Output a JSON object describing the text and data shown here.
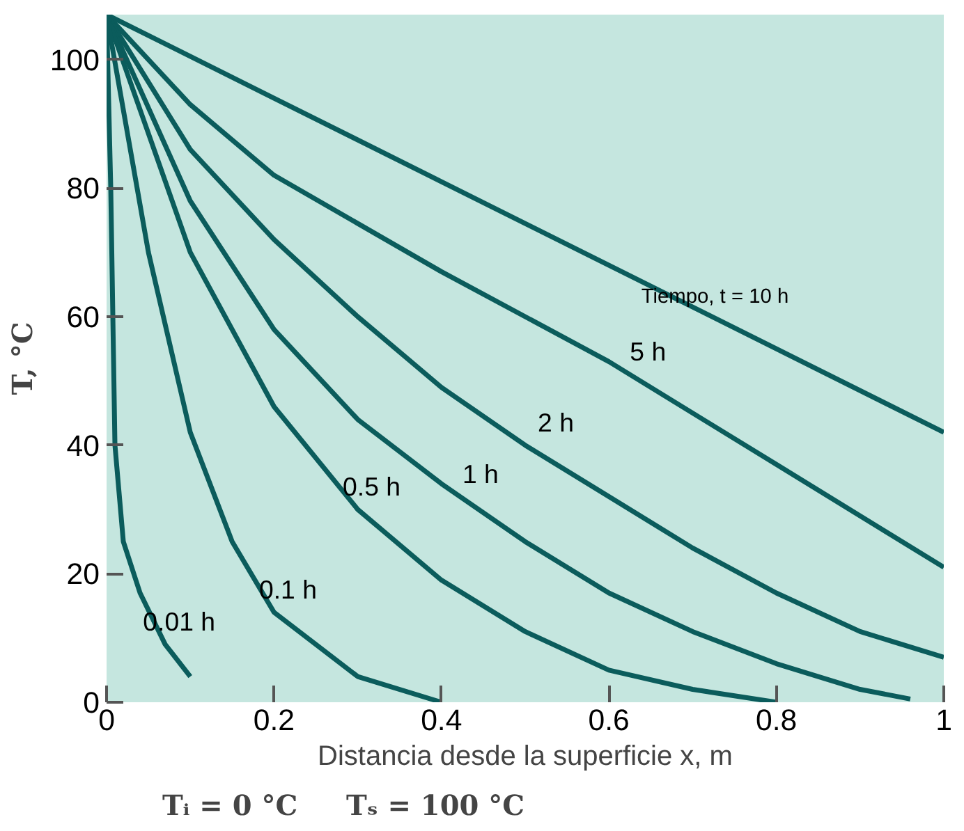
{
  "chart_data": {
    "type": "line",
    "xlabel": "Distancia desde la superficie x, m",
    "ylabel": "T, °C",
    "xlim": [
      0,
      1
    ],
    "ylim": [
      0,
      107
    ],
    "xticks": [
      0,
      0.2,
      0.4,
      0.6,
      0.8,
      1
    ],
    "yticks": [
      0,
      20,
      40,
      60,
      80,
      100
    ],
    "grid": false,
    "marker": "none",
    "line_style": "solid",
    "series": [
      {
        "color": "#0b5c5c",
        "x": [
          0,
          0.2,
          0.4,
          0.6,
          0.8,
          1
        ],
        "values": [
          107,
          94,
          81,
          68,
          55,
          42
        ]
      },
      {
        "color": "#0b5c5c",
        "x": [
          0,
          0.1,
          0.2,
          0.4,
          0.6,
          0.8,
          1
        ],
        "values": [
          107,
          93,
          82,
          67,
          53,
          37,
          21
        ]
      },
      {
        "color": "#0b5c5c",
        "x": [
          0,
          0.1,
          0.2,
          0.3,
          0.4,
          0.5,
          0.6,
          0.7,
          0.8,
          0.9,
          1
        ],
        "values": [
          107,
          86,
          72,
          60,
          49,
          40,
          32,
          24,
          17,
          11,
          7
        ]
      },
      {
        "color": "#0b5c5c",
        "x": [
          0,
          0.1,
          0.2,
          0.3,
          0.4,
          0.5,
          0.6,
          0.7,
          0.8,
          0.9,
          0.96
        ],
        "values": [
          107,
          78,
          58,
          44,
          34,
          25,
          17,
          11,
          6,
          2,
          0.5
        ]
      },
      {
        "color": "#0b5c5c",
        "x": [
          0,
          0.1,
          0.2,
          0.3,
          0.4,
          0.5,
          0.6,
          0.7,
          0.8
        ],
        "values": [
          107,
          70,
          46,
          30,
          19,
          11,
          5,
          2,
          0
        ]
      },
      {
        "color": "#0b5c5c",
        "x": [
          0,
          0.05,
          0.1,
          0.15,
          0.2,
          0.3,
          0.4
        ],
        "values": [
          107,
          70,
          42,
          25,
          14,
          4,
          0
        ]
      },
      {
        "color": "#0b5c5c",
        "x": [
          0,
          0.005,
          0.01,
          0.02,
          0.04,
          0.07,
          0.1
        ],
        "values": [
          107,
          80,
          40,
          25,
          17,
          9,
          4
        ]
      }
    ],
    "annotations": [
      {
        "text": "Tiempo, t = 10 h",
        "x": 0.71,
        "y": 60
      },
      {
        "text": "5 h",
        "x": 0.63,
        "y": 51
      },
      {
        "text": "2 h",
        "x": 0.52,
        "y": 40
      },
      {
        "text": "1 h",
        "x": 0.43,
        "y": 32
      },
      {
        "text": "0.5 h",
        "x": 0.3,
        "y": 30
      },
      {
        "text": "0.1 h",
        "x": 0.2,
        "y": 14
      },
      {
        "text": "0.01 h",
        "x": 0.07,
        "y": 9
      },
      "Tᵢ = 0 °C     Tₛ = 100 °C"
    ]
  }
}
